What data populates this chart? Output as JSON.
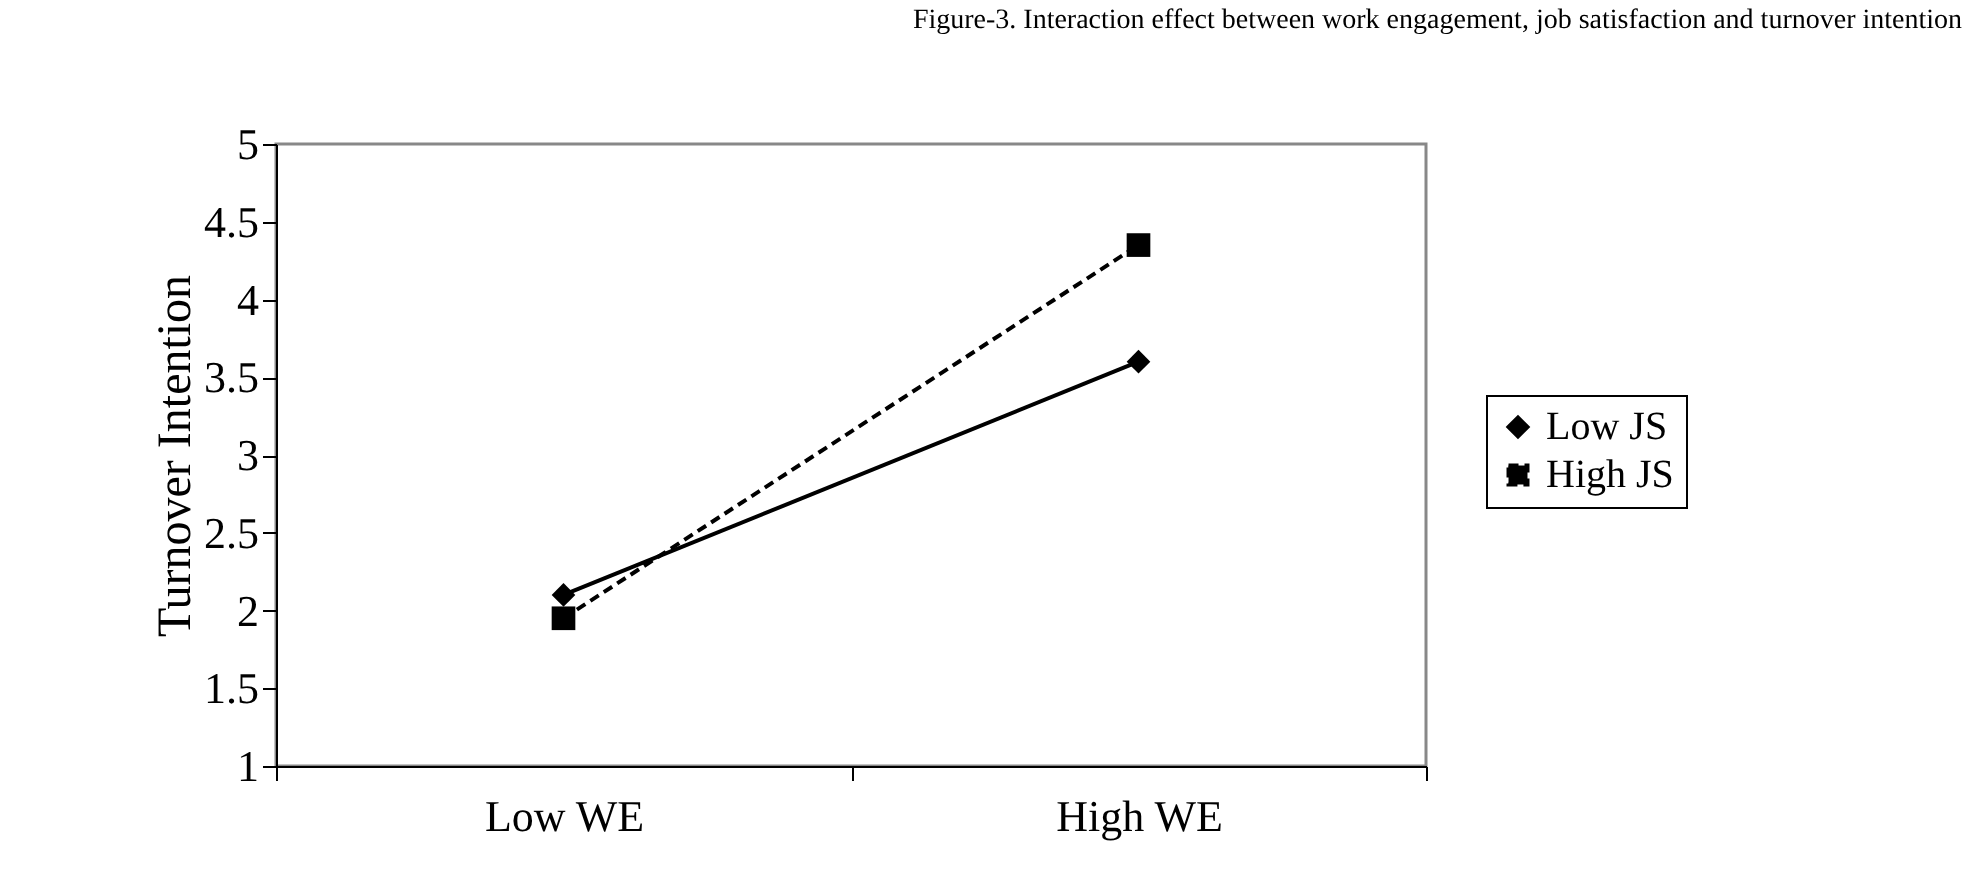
{
  "chart_data": {
    "type": "line",
    "title": "Figure-3. Interaction effect between work engagement, job satisfaction and turnover intention",
    "ylabel": "Turnover Intention",
    "categories": [
      "Low WE",
      "High WE"
    ],
    "series": [
      {
        "name": "Low JS",
        "color": "#000000",
        "values": [
          2.1,
          3.6
        ],
        "marker": "diamond",
        "line_style": "solid"
      },
      {
        "name": "High JS",
        "color": "#000000",
        "values": [
          1.95,
          4.35
        ],
        "marker": "square",
        "line_style": "dashed"
      }
    ],
    "ylim": [
      1,
      5
    ],
    "yticks": [
      1,
      1.5,
      2,
      2.5,
      3,
      3.5,
      4,
      4.5,
      5
    ],
    "legend": "right"
  }
}
